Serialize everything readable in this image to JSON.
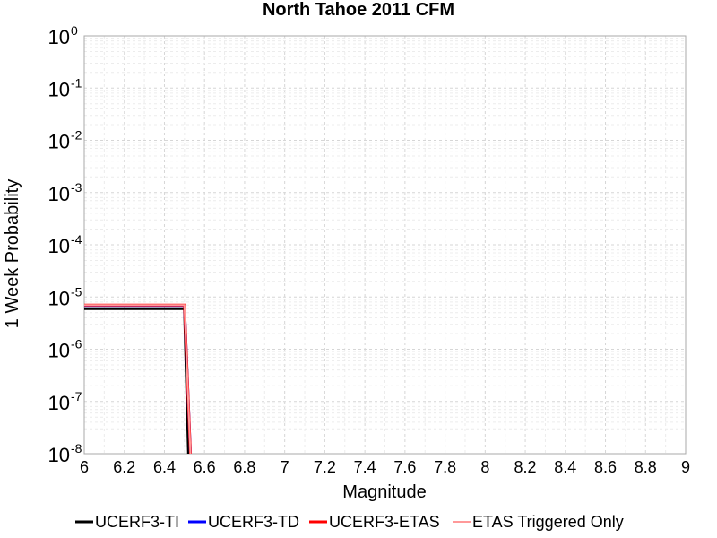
{
  "chart_data": {
    "type": "line",
    "title": "North Tahoe 2011 CFM",
    "xlabel": "Magnitude",
    "ylabel": "1 Week Probability",
    "xlim": [
      6,
      9
    ],
    "ylim": [
      1e-08,
      1
    ],
    "yscale": "log",
    "grid": true,
    "legend_position": "bottom",
    "x_ticks": [
      "6",
      "6.2",
      "6.4",
      "6.6",
      "6.8",
      "7",
      "7.2",
      "7.4",
      "7.6",
      "7.8",
      "8",
      "8.2",
      "8.4",
      "8.6",
      "8.8",
      "9"
    ],
    "y_ticks": [
      {
        "base": "10",
        "exp": "0"
      },
      {
        "base": "10",
        "exp": "-1"
      },
      {
        "base": "10",
        "exp": "-2"
      },
      {
        "base": "10",
        "exp": "-3"
      },
      {
        "base": "10",
        "exp": "-4"
      },
      {
        "base": "10",
        "exp": "-5"
      },
      {
        "base": "10",
        "exp": "-6"
      },
      {
        "base": "10",
        "exp": "-7"
      },
      {
        "base": "10",
        "exp": "-8"
      }
    ],
    "series": [
      {
        "name": "UCERF3-TI",
        "color": "#000000",
        "x": [
          6.0,
          6.5,
          6.52
        ],
        "y": [
          6e-06,
          6e-06,
          1e-08
        ]
      },
      {
        "name": "UCERF3-TD",
        "color": "#0000ff",
        "x": [
          6.0,
          6.5,
          6.53
        ],
        "y": [
          6.9e-06,
          6.9e-06,
          1e-08
        ]
      },
      {
        "name": "UCERF3-ETAS",
        "color": "#ff0000",
        "x": [
          6.0,
          6.5,
          6.53
        ],
        "y": [
          7e-06,
          7e-06,
          1e-08
        ]
      },
      {
        "name": "ETAS Triggered Only",
        "color": "#ff9999",
        "x": [
          6.0,
          6.5,
          6.53
        ],
        "y": [
          7e-06,
          7e-06,
          1e-08
        ]
      }
    ]
  }
}
